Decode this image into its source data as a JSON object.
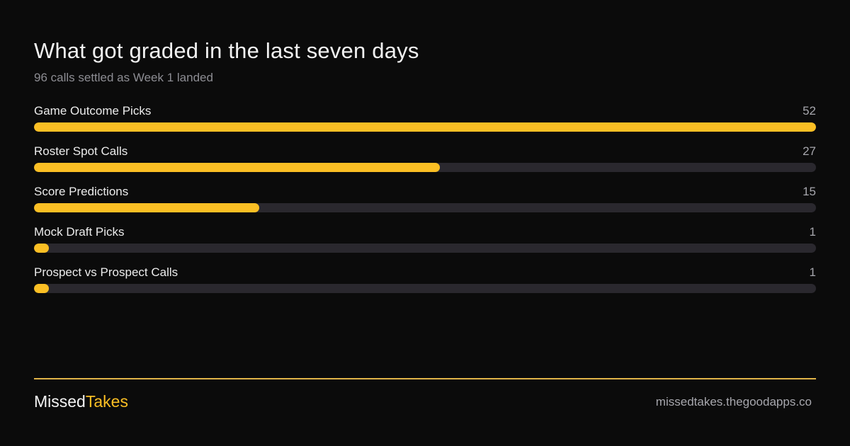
{
  "chart_data": {
    "type": "bar",
    "orientation": "horizontal",
    "title": "What got graded in the last seven days",
    "subtitle": "96 calls settled as Week 1 landed",
    "categories": [
      "Game Outcome Picks",
      "Roster Spot Calls",
      "Score Predictions",
      "Mock Draft Picks",
      "Prospect vs Prospect Calls"
    ],
    "values": [
      52,
      27,
      15,
      1,
      1
    ],
    "xlim": [
      0,
      52
    ],
    "grid": false,
    "legend": "none"
  },
  "footer": {
    "brand_part1": "Missed",
    "brand_part2": "Takes",
    "site": "missedtakes.thegoodapps.co"
  },
  "colors": {
    "background": "#0b0b0b",
    "accent": "#fbbf24",
    "track": "#2a282e",
    "muted_text": "#8d8d93"
  }
}
